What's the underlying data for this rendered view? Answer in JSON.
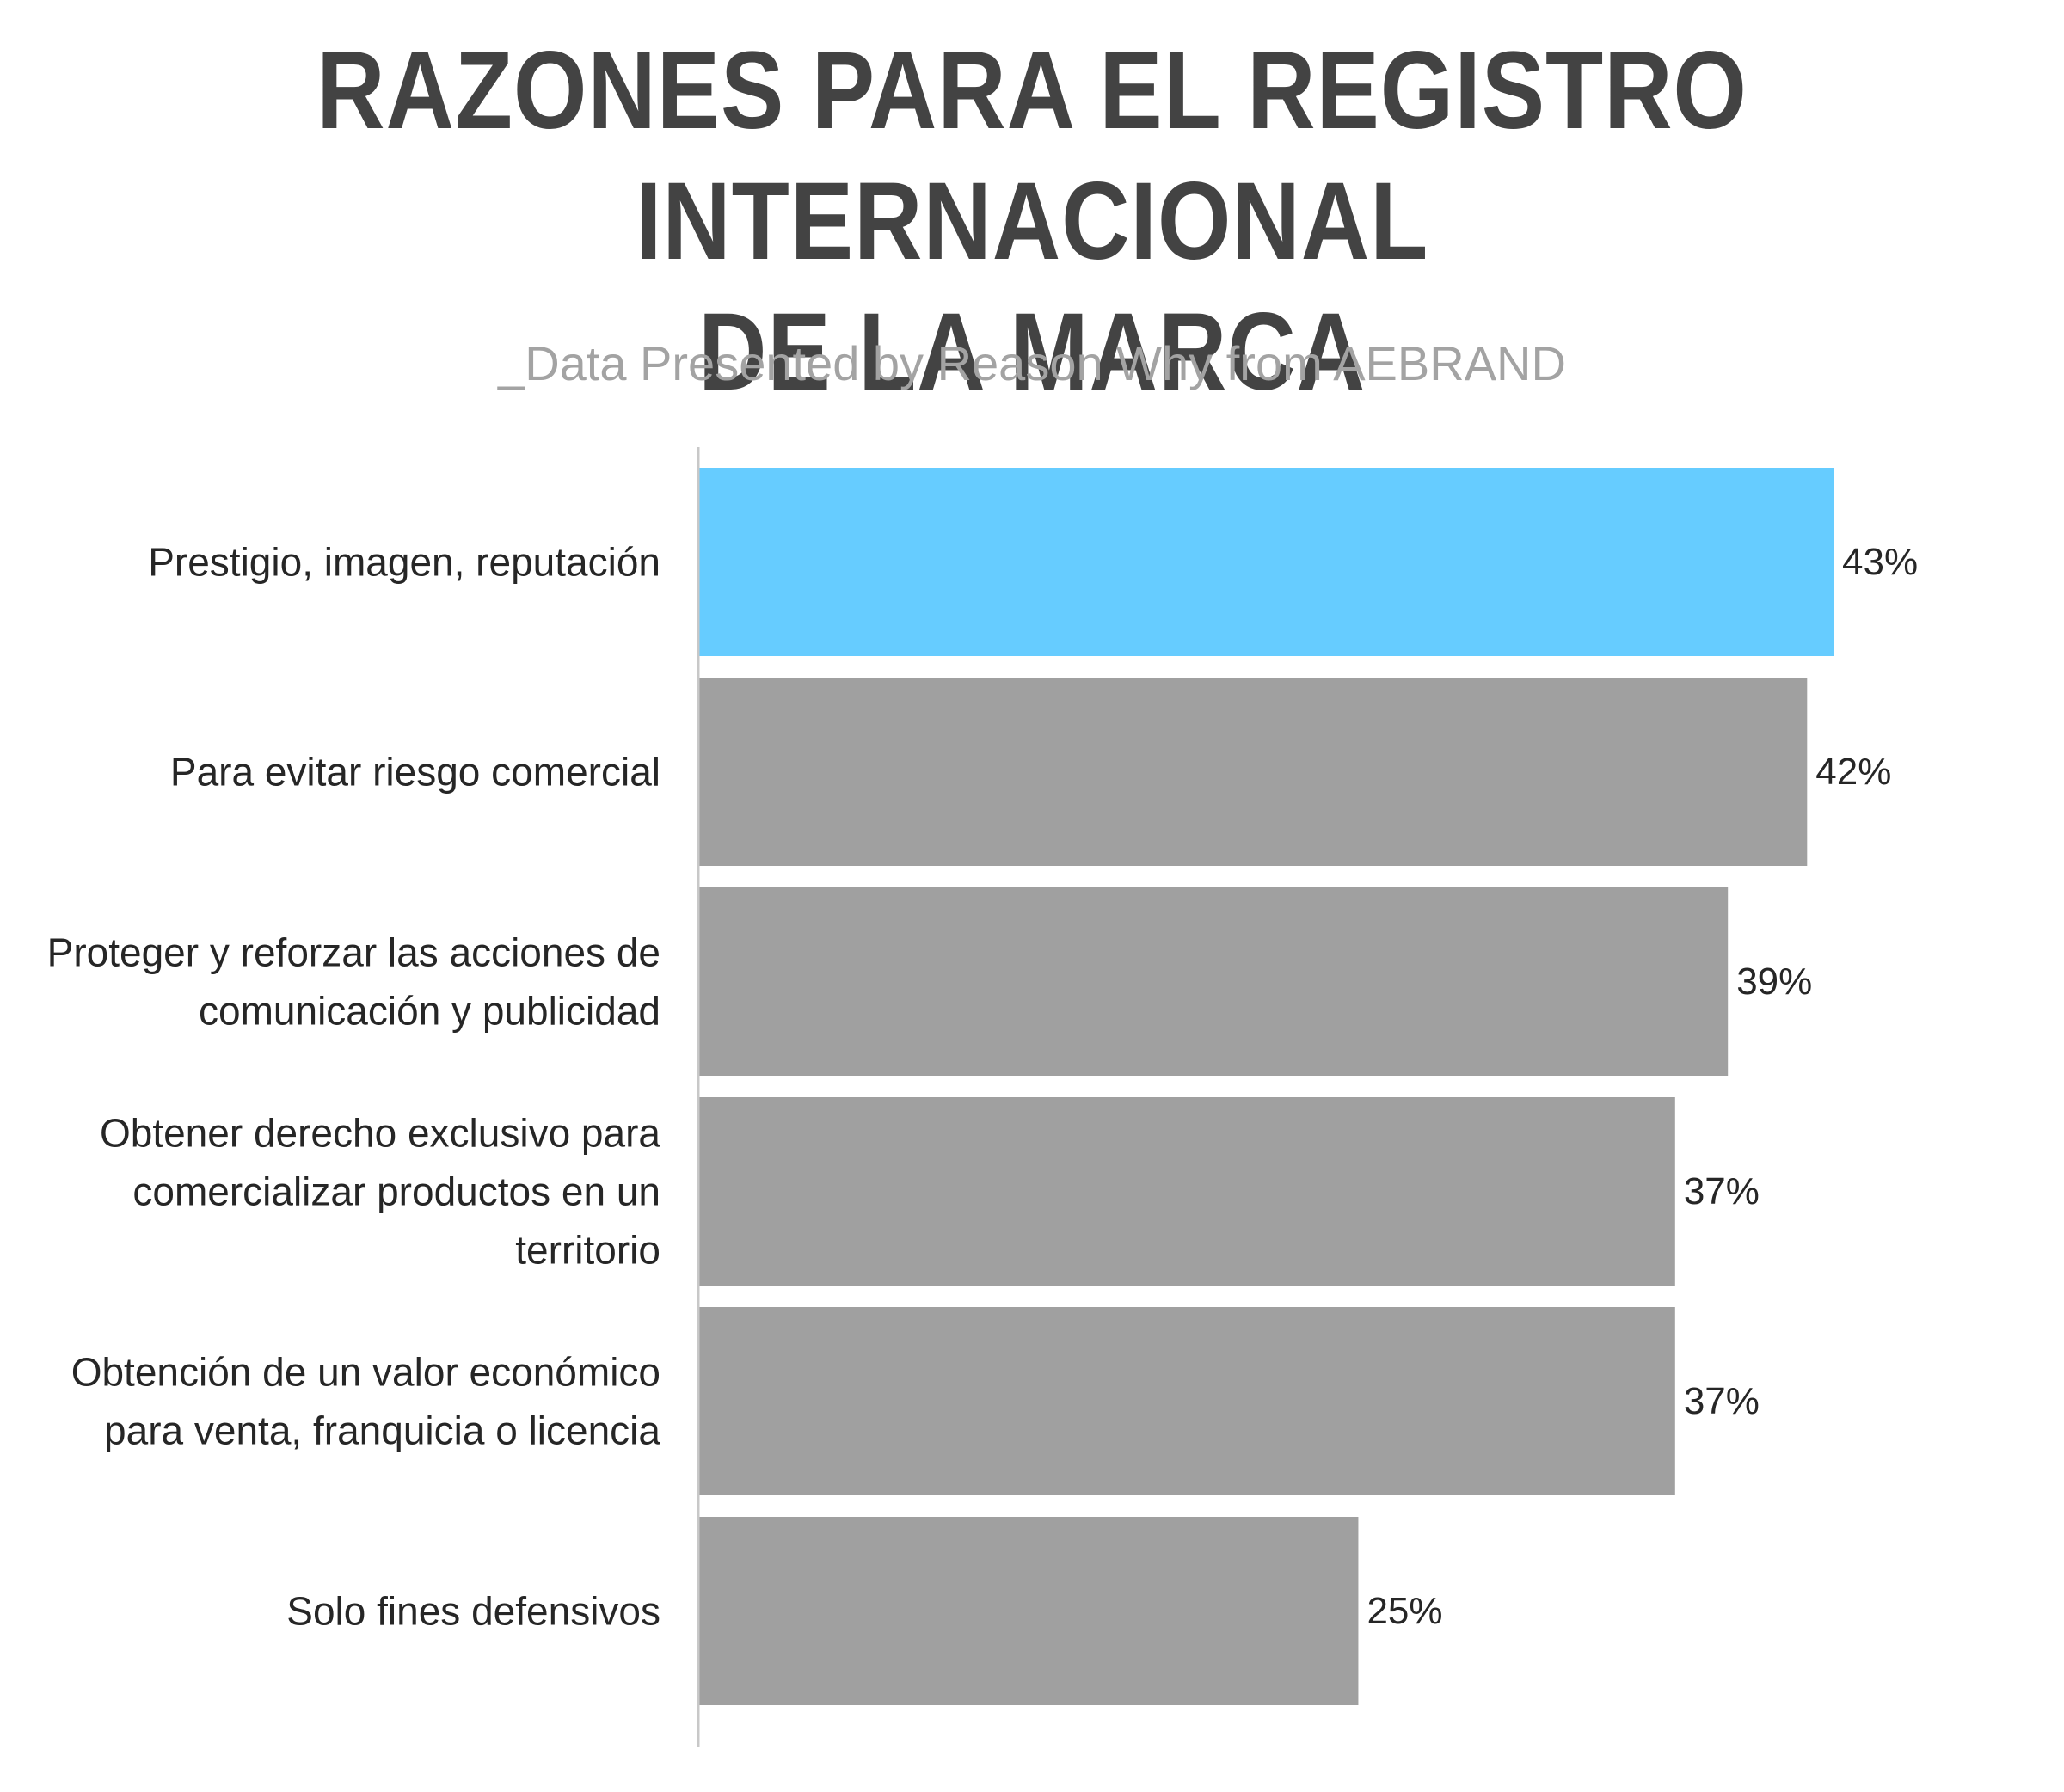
{
  "chart_data": {
    "type": "bar",
    "orientation": "horizontal",
    "title_lines": [
      "RAZONES PARA EL REGISTRO INTERNACIONAL",
      "DE LA MARCA"
    ],
    "subtitle": "_Data Presented by Reason Why from AEBRAND",
    "categories": [
      [
        "Prestigio, imagen, reputación"
      ],
      [
        "Para evitar riesgo comercial"
      ],
      [
        "Proteger y reforzar las acciones de",
        "comunicación y publicidad"
      ],
      [
        "Obtener derecho exclusivo para",
        "comercializar productos en un",
        "territorio"
      ],
      [
        "Obtención de un valor económico",
        "para venta, franquicia o licencia"
      ],
      [
        "Solo fines defensivos"
      ]
    ],
    "values": [
      43,
      42,
      39,
      37,
      37,
      25
    ],
    "value_labels": [
      "43%",
      "42%",
      "39%",
      "37%",
      "37%",
      "25%"
    ],
    "unit": "%",
    "xlim": [
      0,
      43
    ],
    "grid": false,
    "legend": "none",
    "colors": {
      "highlight": "#66ccff",
      "default": "#a0a0a0",
      "axis": "#c8c8c8",
      "title": "#434343",
      "subtitle": "#a3a3a3",
      "text": "#262626"
    },
    "highlight_index": 0
  }
}
